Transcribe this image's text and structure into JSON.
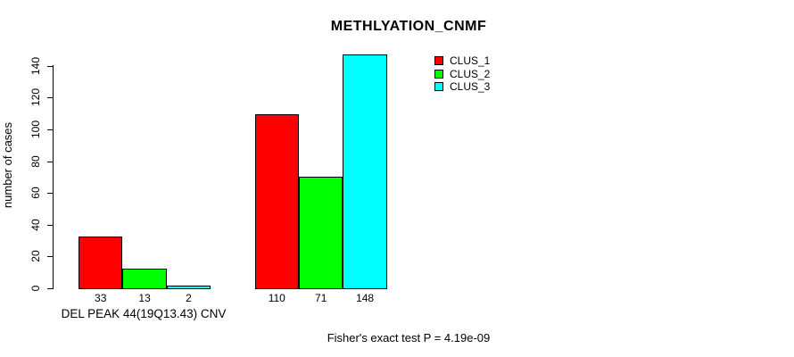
{
  "title": "METHLYATION_CNMF",
  "footer": "Fisher's exact test P = 4.19e-09",
  "chart_data": {
    "type": "bar",
    "title": "METHLYATION_CNMF",
    "ylabel": "number of cases",
    "group_axis_label": "DEL PEAK 44(19Q13.43) CNV",
    "yticks": [
      0,
      20,
      40,
      60,
      80,
      100,
      120,
      140
    ],
    "ylim": [
      0,
      148
    ],
    "grid": false,
    "legend_position": "top-right",
    "groups": [
      "DEL PEAK 44(19Q13.43) CNV",
      ""
    ],
    "series": [
      {
        "name": "CLUS_1",
        "color": "#ff0000",
        "values": [
          33,
          110
        ]
      },
      {
        "name": "CLUS_2",
        "color": "#00ff00",
        "values": [
          13,
          71
        ]
      },
      {
        "name": "CLUS_3",
        "color": "#00ffff",
        "values": [
          2,
          148
        ]
      }
    ],
    "bar_value_labels": [
      [
        33,
        13,
        2
      ],
      [
        110,
        71,
        148
      ]
    ],
    "annotation": "Fisher's exact test P = 4.19e-09",
    "axis_color": "#000000",
    "background_color": "#ffffff"
  }
}
